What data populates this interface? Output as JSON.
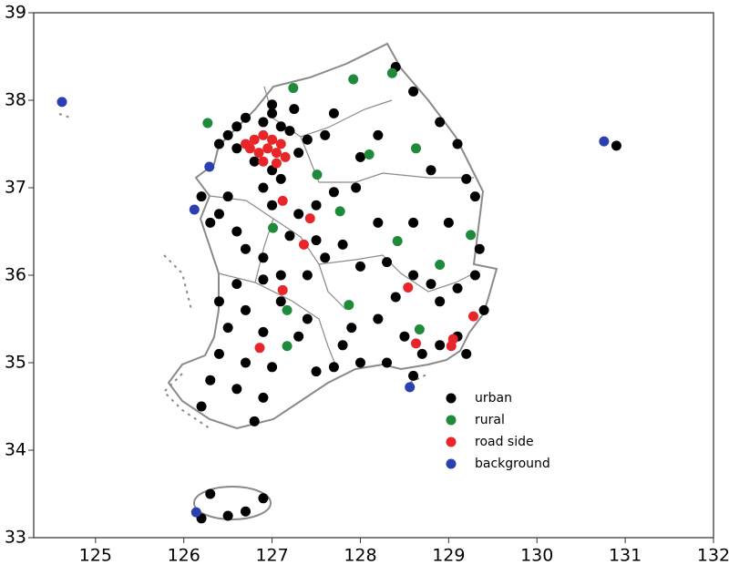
{
  "chart_data": {
    "type": "scatter",
    "xlim": [
      124.3,
      132
    ],
    "ylim": [
      33,
      39
    ],
    "xticks": [
      125,
      126,
      127,
      128,
      129,
      130,
      131,
      132
    ],
    "yticks": [
      33,
      34,
      35,
      36,
      37,
      38,
      39
    ],
    "legend": "lower right",
    "series": [
      {
        "name": "urban",
        "color": "#000000",
        "x": [
          126.6,
          126.7,
          126.9,
          127.0,
          127.1,
          127.2,
          126.5,
          126.6,
          126.4,
          126.8,
          127.0,
          127.1,
          126.9,
          127.3,
          127.4,
          127.6,
          127.25,
          127.0,
          128.4,
          128.6,
          128.9,
          129.1,
          128.2,
          127.7,
          128.0,
          128.8,
          129.2,
          127.95,
          126.5,
          126.4,
          126.6,
          126.7,
          127.0,
          127.3,
          127.5,
          127.7,
          127.2,
          127.5,
          127.6,
          126.9,
          127.1,
          127.4,
          127.8,
          126.2,
          126.3,
          128.2,
          128.6,
          129.0,
          129.3,
          129.35,
          128.0,
          128.3,
          128.6,
          128.8,
          129.3,
          129.4,
          128.4,
          128.9,
          129.1,
          126.6,
          126.9,
          126.4,
          126.7,
          127.1,
          127.4,
          126.5,
          126.9,
          127.3,
          126.4,
          126.7,
          127.0,
          127.5,
          127.7,
          126.3,
          126.6,
          126.9,
          126.8,
          126.2,
          127.9,
          128.2,
          128.5,
          128.7,
          128.3,
          128.0,
          128.9,
          129.1,
          129.2,
          127.8,
          128.6,
          126.3,
          126.5,
          126.7,
          126.9,
          126.2,
          130.9
        ],
        "y": [
          37.7,
          37.8,
          37.75,
          37.85,
          37.7,
          37.65,
          37.6,
          37.45,
          37.5,
          37.3,
          37.2,
          37.1,
          37.0,
          37.4,
          37.55,
          37.6,
          37.9,
          37.95,
          38.38,
          38.1,
          37.75,
          37.5,
          37.6,
          37.85,
          37.35,
          37.2,
          37.1,
          37.0,
          36.9,
          36.7,
          36.5,
          36.3,
          36.8,
          36.7,
          36.8,
          36.95,
          36.45,
          36.4,
          36.2,
          36.2,
          36.0,
          36.0,
          36.35,
          36.9,
          36.6,
          36.6,
          36.6,
          36.6,
          36.9,
          36.3,
          36.1,
          36.15,
          36.0,
          35.9,
          36.0,
          35.6,
          35.75,
          35.7,
          35.85,
          35.9,
          35.95,
          35.7,
          35.6,
          35.7,
          35.5,
          35.4,
          35.35,
          35.3,
          35.1,
          35.0,
          34.95,
          34.9,
          34.95,
          34.8,
          34.7,
          34.6,
          34.33,
          34.5,
          35.4,
          35.5,
          35.3,
          35.1,
          35.0,
          35.0,
          35.2,
          35.3,
          35.1,
          35.2,
          34.85,
          33.5,
          33.25,
          33.3,
          33.45,
          33.22,
          37.48
        ]
      },
      {
        "name": "rural",
        "color": "#1f8a3a",
        "x": [
          127.24,
          127.92,
          128.36,
          126.27,
          128.1,
          128.63,
          127.51,
          127.01,
          127.77,
          128.42,
          129.25,
          128.9,
          127.87,
          127.17,
          128.67,
          127.17
        ],
        "y": [
          38.14,
          38.24,
          38.31,
          37.74,
          37.38,
          37.45,
          37.15,
          36.54,
          36.73,
          36.39,
          36.46,
          36.12,
          35.66,
          35.6,
          35.38,
          35.19
        ]
      },
      {
        "name": "road side",
        "color": "#e8262a",
        "x": [
          126.7,
          126.8,
          126.9,
          127.0,
          127.1,
          126.75,
          126.85,
          126.95,
          127.05,
          127.15,
          126.9,
          127.05,
          127.12,
          127.43,
          127.36,
          127.12,
          128.54,
          128.63,
          129.03,
          129.05,
          129.28,
          126.86
        ],
        "y": [
          37.5,
          37.55,
          37.6,
          37.55,
          37.5,
          37.45,
          37.4,
          37.45,
          37.4,
          37.35,
          37.3,
          37.28,
          36.85,
          36.65,
          36.35,
          35.83,
          35.86,
          35.22,
          35.19,
          35.27,
          35.53,
          35.17
        ]
      },
      {
        "name": "background",
        "color": "#2a3fb0",
        "x": [
          124.62,
          130.76,
          126.29,
          126.12,
          128.56,
          126.14
        ],
        "y": [
          37.98,
          37.53,
          37.24,
          36.75,
          34.72,
          33.29
        ]
      }
    ]
  }
}
